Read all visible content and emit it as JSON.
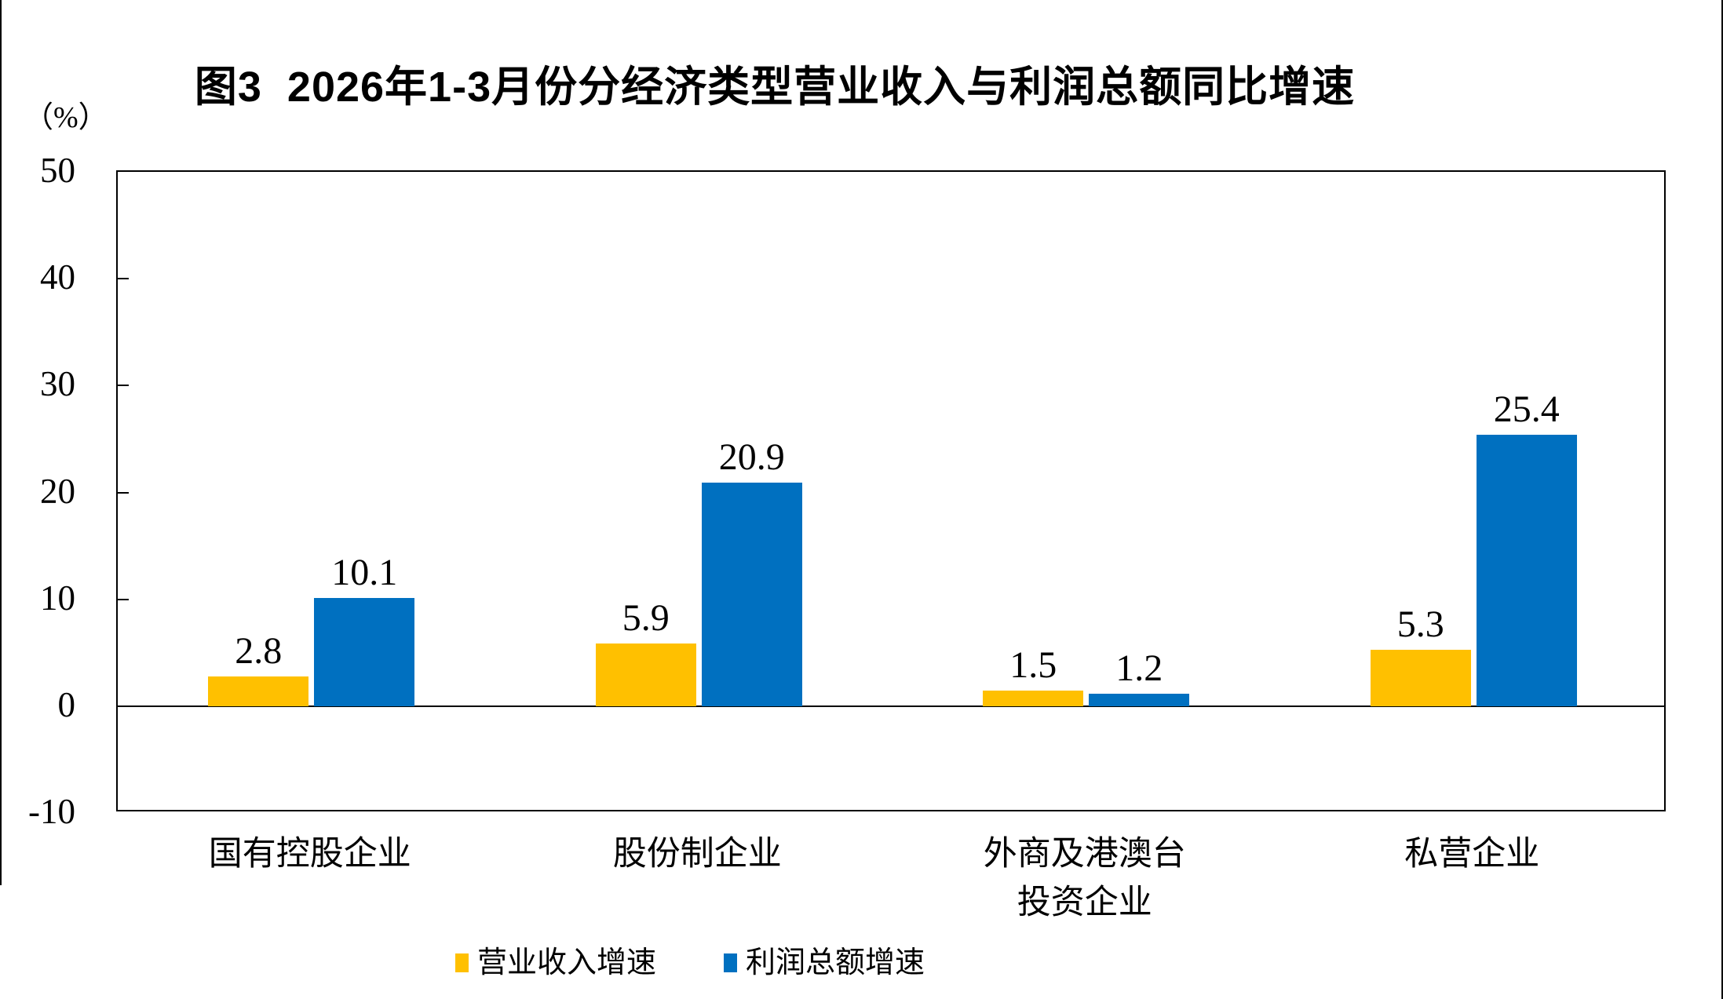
{
  "chart_data": {
    "type": "bar",
    "title": "图3  2026年1-3月份分经济类型营业收入与利润总额同比增速",
    "unit_label": "（%）",
    "categories": [
      "国有控股企业",
      "股份制企业",
      "外商及港澳台\n投资企业",
      "私营企业"
    ],
    "series": [
      {
        "name": "营业收入增速",
        "color": "#FFC000",
        "values": [
          2.8,
          5.9,
          1.5,
          5.3
        ]
      },
      {
        "name": "利润总额增速",
        "color": "#0070C0",
        "values": [
          10.1,
          20.9,
          1.2,
          25.4
        ]
      }
    ],
    "ylim": [
      -10,
      50
    ],
    "yticks": [
      50,
      40,
      30,
      20,
      10,
      0,
      -10
    ],
    "ytick_interval": 10,
    "grid": false,
    "legend_position": "bottom",
    "data_labels": true,
    "axis_color": "#000000",
    "text_color": "#000000"
  }
}
